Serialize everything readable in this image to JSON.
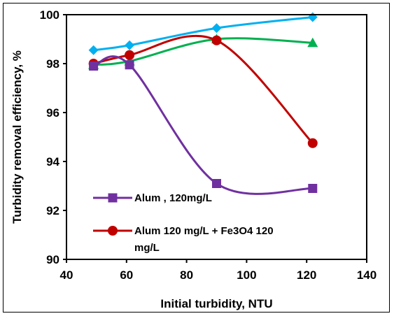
{
  "chart_data": {
    "type": "line",
    "xlabel": "Initial turbidity, NTU",
    "ylabel": "Turbidity removal efficiency, %",
    "xlim": [
      40,
      140
    ],
    "ylim": [
      90,
      100
    ],
    "xticks": [
      "40",
      "60",
      "80",
      "100",
      "120",
      "140"
    ],
    "yticks": [
      "90",
      "92",
      "94",
      "96",
      "98",
      "100"
    ],
    "grid": false,
    "legend_position": "bottom-left",
    "series": [
      {
        "name": "Alum , 120mg/L",
        "color": "#7030a0",
        "marker": "square",
        "x": [
          49,
          61,
          90,
          122
        ],
        "y": [
          97.9,
          97.95,
          93.1,
          92.9
        ]
      },
      {
        "name": "Alum 120 mg/L + Fe3O4 120 mg/L",
        "legend_lines": [
          "Alum 120 mg/L + Fe3O4 120",
          "mg/L"
        ],
        "color": "#c00000",
        "marker": "circle",
        "x": [
          49,
          61,
          90,
          122
        ],
        "y": [
          98.0,
          98.35,
          98.95,
          94.75
        ]
      },
      {
        "name": "",
        "color": "#00b050",
        "marker": "triangle",
        "x": [
          49,
          61,
          90,
          122
        ],
        "y": [
          97.95,
          98.1,
          99.0,
          98.85
        ]
      },
      {
        "name": "",
        "color": "#00b0f0",
        "marker": "diamond",
        "x": [
          49,
          61,
          90,
          122
        ],
        "y": [
          98.55,
          98.75,
          99.45,
          99.9
        ]
      }
    ]
  }
}
